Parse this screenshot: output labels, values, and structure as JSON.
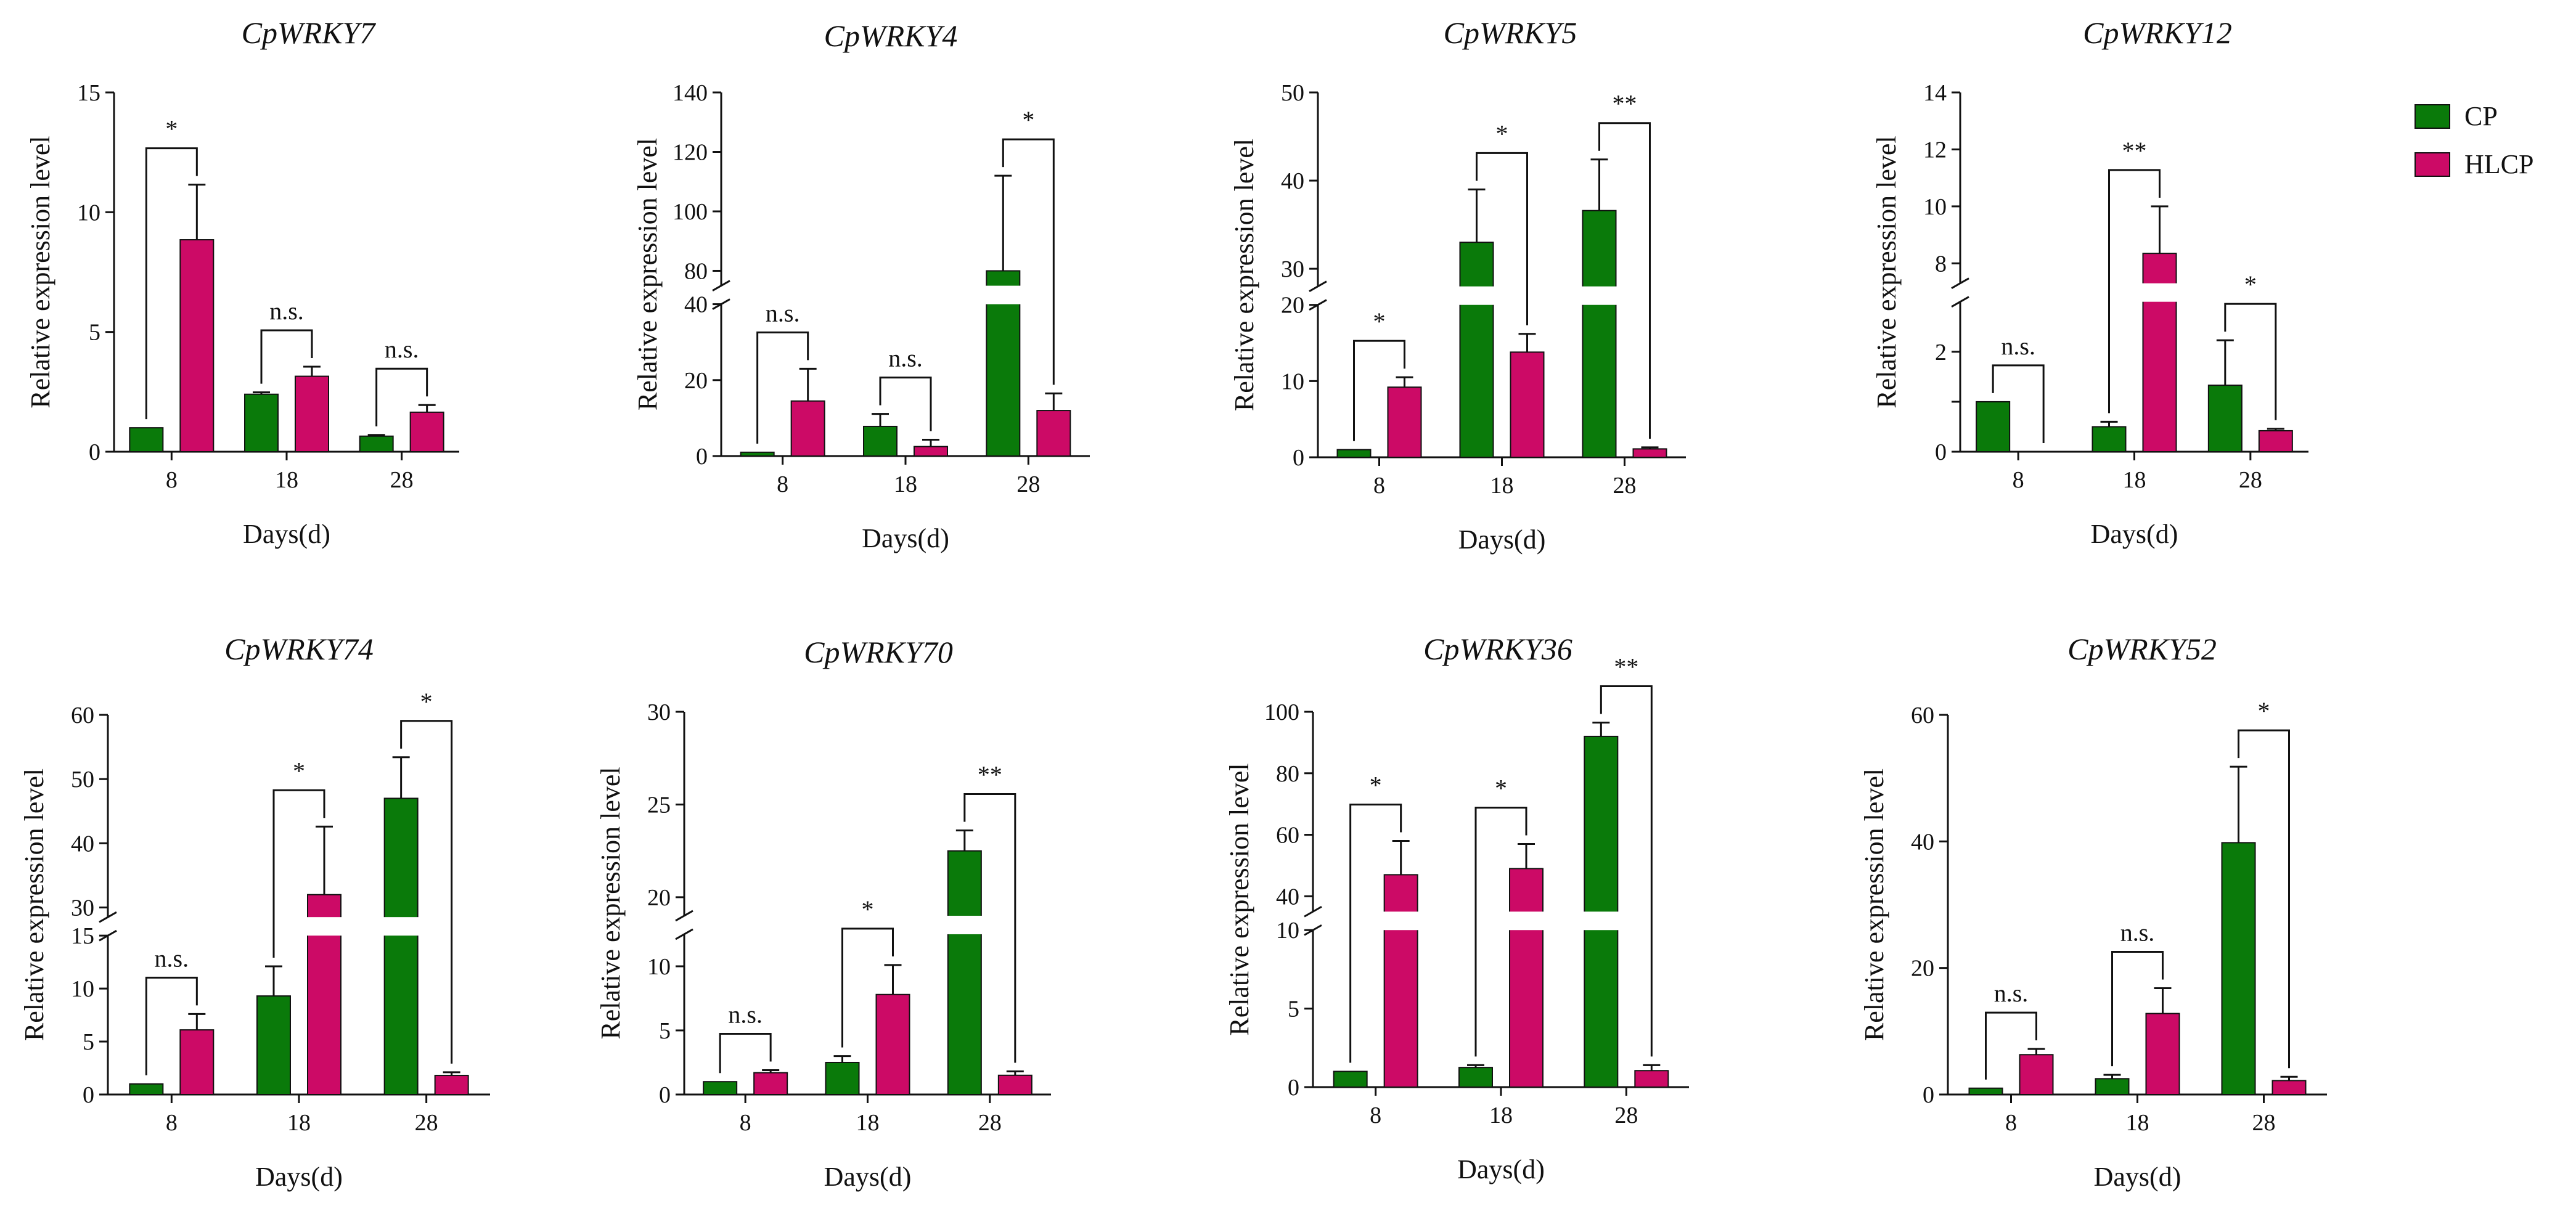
{
  "legend": [
    {
      "label": "CP",
      "color": "#0a7a0a"
    },
    {
      "label": "HLCP",
      "color": "#cc0a66"
    }
  ],
  "chart_data": [
    {
      "type": "bar",
      "title": "CpWRKY7",
      "xlabel": "Days(d)",
      "ylabel": "Relative expression level",
      "categories": [
        "8",
        "18",
        "28"
      ],
      "axis_break": null,
      "yticks": [
        0,
        5,
        10,
        15
      ],
      "ytick_labels": [
        "0",
        "5",
        "10",
        "15"
      ],
      "series": [
        {
          "name": "CP",
          "values": [
            1,
            2.4,
            0.65
          ],
          "errors": [
            0,
            0.08,
            0.05
          ]
        },
        {
          "name": "HLCP",
          "values": [
            8.85,
            3.15,
            1.65
          ],
          "errors": [
            2.3,
            0.4,
            0.3
          ]
        }
      ],
      "significance": [
        "*",
        "n.s.",
        "n.s."
      ]
    },
    {
      "type": "bar",
      "title": "CpWRKY4",
      "xlabel": "Days(d)",
      "ylabel": "Relative expression level",
      "categories": [
        "8",
        "18",
        "28"
      ],
      "axis_break": {
        "lower": [
          0,
          40
        ],
        "upper": [
          75,
          140
        ]
      },
      "yticks": [
        0,
        20,
        40,
        80,
        100,
        120,
        140
      ],
      "ytick_labels": [
        "0",
        "20",
        "40",
        "80",
        "100",
        "120",
        "140"
      ],
      "series": [
        {
          "name": "CP",
          "values": [
            1,
            7.8,
            80
          ],
          "errors": [
            0,
            3.3,
            32
          ]
        },
        {
          "name": "HLCP",
          "values": [
            14.5,
            2.5,
            12
          ],
          "errors": [
            8.5,
            1.8,
            4.5
          ]
        }
      ],
      "significance": [
        "n.s.",
        "n.s.",
        "*"
      ]
    },
    {
      "type": "bar",
      "title": "CpWRKY5",
      "xlabel": "Days(d)",
      "ylabel": "Relative expression level",
      "categories": [
        "8",
        "18",
        "28"
      ],
      "axis_break": {
        "lower": [
          0,
          20
        ],
        "upper": [
          28,
          50
        ]
      },
      "yticks": [
        0,
        10,
        20,
        30,
        40,
        50
      ],
      "ytick_labels": [
        "0",
        "10",
        "20",
        "30",
        "40",
        "50"
      ],
      "series": [
        {
          "name": "CP",
          "values": [
            1,
            33,
            36.6
          ],
          "errors": [
            0,
            6,
            5.8
          ]
        },
        {
          "name": "HLCP",
          "values": [
            9.2,
            13.8,
            1.1
          ],
          "errors": [
            1.3,
            2.4,
            0.2
          ]
        }
      ],
      "significance": [
        "*",
        "*",
        "**"
      ]
    },
    {
      "type": "bar",
      "title": "CpWRKY12",
      "xlabel": "Days(d)",
      "ylabel": "Relative expression level",
      "categories": [
        "8",
        "18",
        "28"
      ],
      "axis_break": {
        "lower": [
          0,
          3
        ],
        "upper": [
          7.3,
          14
        ]
      },
      "yticks": [
        0,
        1,
        2,
        8,
        10,
        12,
        14
      ],
      "ytick_labels": [
        "0",
        "",
        "2",
        "8",
        "10",
        "12",
        "14"
      ],
      "series": [
        {
          "name": "CP",
          "values": [
            1,
            0.5,
            1.33
          ],
          "errors": [
            0,
            0.1,
            0.9
          ]
        },
        {
          "name": "HLCP",
          "values": [
            0,
            8.35,
            0.42
          ],
          "errors": [
            0,
            1.65,
            0.04
          ]
        }
      ],
      "significance": [
        "n.s.",
        "**",
        "*"
      ]
    },
    {
      "type": "bar",
      "title": "CpWRKY74",
      "xlabel": "Days(d)",
      "ylabel": "Relative expression level",
      "categories": [
        "8",
        "18",
        "28"
      ],
      "axis_break": {
        "lower": [
          0,
          15
        ],
        "upper": [
          28.5,
          60
        ]
      },
      "yticks": [
        0,
        5,
        10,
        15,
        30,
        40,
        50,
        60
      ],
      "ytick_labels": [
        "0",
        "5",
        "10",
        "15",
        "30",
        "40",
        "50",
        "60"
      ],
      "series": [
        {
          "name": "CP",
          "values": [
            1,
            9.3,
            47
          ],
          "errors": [
            0,
            2.8,
            6.4
          ]
        },
        {
          "name": "HLCP",
          "values": [
            6.1,
            32,
            1.8
          ],
          "errors": [
            1.5,
            10.6,
            0.3
          ]
        }
      ],
      "significance": [
        "n.s.",
        "*",
        "*"
      ]
    },
    {
      "type": "bar",
      "title": "CpWRKY70",
      "xlabel": "Days(d)",
      "ylabel": "Relative expression level",
      "categories": [
        "8",
        "18",
        "28"
      ],
      "axis_break": {
        "lower": [
          0,
          12.5
        ],
        "upper": [
          19,
          30
        ]
      },
      "yticks": [
        0,
        5,
        10,
        20,
        25,
        30
      ],
      "ytick_labels": [
        "0",
        "5",
        "10",
        "20",
        "25",
        "30"
      ],
      "series": [
        {
          "name": "CP",
          "values": [
            1,
            2.5,
            22.5
          ],
          "errors": [
            0,
            0.5,
            1.1
          ]
        },
        {
          "name": "HLCP",
          "values": [
            1.7,
            7.8,
            1.5
          ],
          "errors": [
            0.2,
            2.3,
            0.3
          ]
        }
      ],
      "significance": [
        "n.s.",
        "*",
        "**"
      ]
    },
    {
      "type": "bar",
      "title": "CpWRKY36",
      "xlabel": "Days(d)",
      "ylabel": "Relative expression level",
      "categories": [
        "8",
        "18",
        "28"
      ],
      "axis_break": {
        "lower": [
          0,
          10
        ],
        "upper": [
          35,
          100
        ]
      },
      "yticks": [
        0,
        5,
        10,
        40,
        60,
        80,
        100
      ],
      "ytick_labels": [
        "0",
        "5",
        "10",
        "40",
        "60",
        "80",
        "100"
      ],
      "series": [
        {
          "name": "CP",
          "values": [
            1,
            1.25,
            92
          ],
          "errors": [
            0,
            0.15,
            4.5
          ]
        },
        {
          "name": "HLCP",
          "values": [
            47,
            49,
            1.05
          ],
          "errors": [
            11,
            8,
            0.35
          ]
        }
      ],
      "significance": [
        "*",
        "*",
        "**"
      ]
    },
    {
      "type": "bar",
      "title": "CpWRKY52",
      "xlabel": "Days(d)",
      "ylabel": "Relative expression level",
      "categories": [
        "8",
        "18",
        "28"
      ],
      "axis_break": null,
      "yticks": [
        0,
        20,
        40,
        60
      ],
      "ytick_labels": [
        "0",
        "20",
        "40",
        "60"
      ],
      "series": [
        {
          "name": "CP",
          "values": [
            1,
            2.5,
            39.8
          ],
          "errors": [
            0,
            0.6,
            12
          ]
        },
        {
          "name": "HLCP",
          "values": [
            6.3,
            12.8,
            2.2
          ],
          "errors": [
            0.9,
            4,
            0.6
          ]
        }
      ],
      "significance": [
        "n.s.",
        "n.s.",
        "*"
      ]
    }
  ]
}
